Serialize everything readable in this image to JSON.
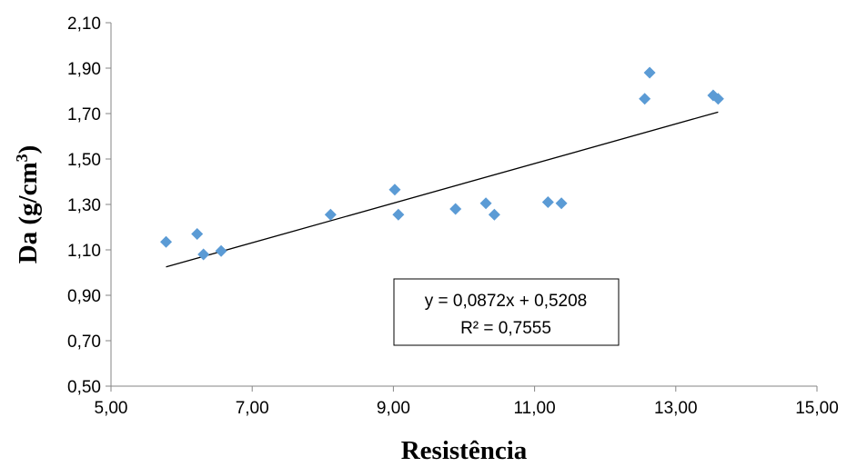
{
  "chart_data": {
    "type": "scatter",
    "xlabel": "Resistência",
    "ylabel_main": "Da (g/cm",
    "ylabel_sup": "3",
    "ylabel_end": ")",
    "xlim": [
      5.0,
      15.0
    ],
    "ylim": [
      0.5,
      2.1
    ],
    "xticks": [
      5.0,
      7.0,
      9.0,
      11.0,
      13.0,
      15.0
    ],
    "yticks": [
      0.5,
      0.7,
      0.9,
      1.1,
      1.3,
      1.5,
      1.7,
      1.9,
      2.1
    ],
    "xtick_labels": [
      "5,00",
      "7,00",
      "9,00",
      "11,00",
      "13,00",
      "15,00"
    ],
    "ytick_labels": [
      "0,50",
      "0,70",
      "0,90",
      "1,10",
      "1,30",
      "1,50",
      "1,70",
      "1,90",
      "2,10"
    ],
    "grid": false,
    "marker_color": "#5B9BD5",
    "line_color": "#000000",
    "points": [
      {
        "x": 5.78,
        "y": 1.135
      },
      {
        "x": 6.22,
        "y": 1.17
      },
      {
        "x": 6.31,
        "y": 1.08
      },
      {
        "x": 6.56,
        "y": 1.095
      },
      {
        "x": 8.11,
        "y": 1.255
      },
      {
        "x": 9.02,
        "y": 1.365
      },
      {
        "x": 9.07,
        "y": 1.255
      },
      {
        "x": 9.88,
        "y": 1.28
      },
      {
        "x": 10.31,
        "y": 1.305
      },
      {
        "x": 10.43,
        "y": 1.255
      },
      {
        "x": 11.19,
        "y": 1.31
      },
      {
        "x": 11.38,
        "y": 1.305
      },
      {
        "x": 12.56,
        "y": 1.765
      },
      {
        "x": 12.63,
        "y": 1.88
      },
      {
        "x": 13.53,
        "y": 1.78
      },
      {
        "x": 13.6,
        "y": 1.765
      }
    ],
    "trendline": {
      "slope": 0.0872,
      "intercept": 0.5208,
      "x_range": [
        5.78,
        13.6
      ],
      "equation": "y = 0,0872x + 0,5208",
      "r2": "R² = 0,7555"
    }
  }
}
